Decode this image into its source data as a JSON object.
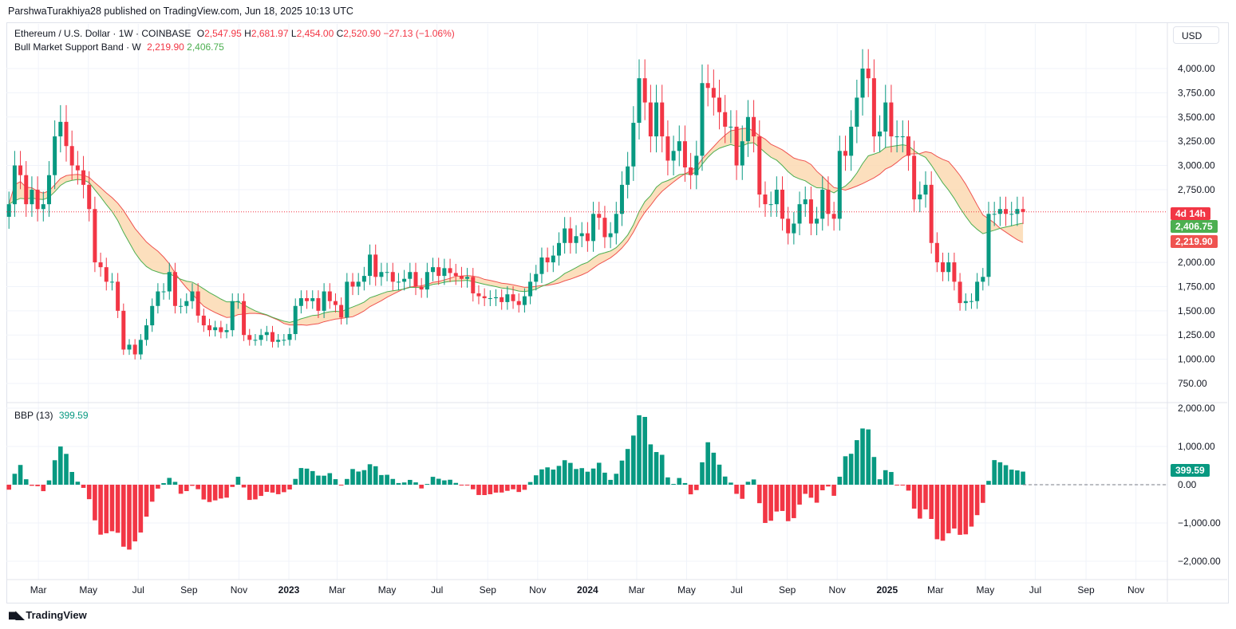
{
  "published": "ParshwaTurakhiya28 published on TradingView.com, Jun 18, 2025 10:13 UTC",
  "symbol": {
    "title": "Ethereum / U.S. Dollar · 1W · COINBASE",
    "o_label": "O",
    "open": "2,547.95",
    "h_label": "H",
    "high": "2,681.97",
    "l_label": "L",
    "low": "2,454.00",
    "c_label": "C",
    "close": "2,520.90",
    "change": "−27.13 (−1.06%)"
  },
  "indicator": {
    "title": "Bull Market Support Band · W",
    "sma": "2,219.90",
    "ema": "2,406.75"
  },
  "bbp": {
    "title": "BBP (13)",
    "value": "399.59"
  },
  "currency": "USD",
  "tags": {
    "countdown": "4d 14h",
    "ema": "2,406.75",
    "sma": "2,219.90",
    "bbp": "399.59"
  },
  "colors": {
    "up": "#089981",
    "down": "#f23645",
    "sma": "#ef5350",
    "ema": "#4caf50",
    "band": "#fbd7ad"
  },
  "brand": "TradingView",
  "chart_data": {
    "type": "candlestick",
    "interval": "1W",
    "x_start": "2022-01-24",
    "closes": [
      2600,
      3000,
      2900,
      2600,
      2750,
      2550,
      2600,
      2900,
      3300,
      3450,
      3200,
      3000,
      2950,
      2800,
      2550,
      2000,
      1950,
      1800,
      1800,
      1500,
      1100,
      1150,
      1050,
      1200,
      1350,
      1550,
      1700,
      1700,
      1900,
      1550,
      1550,
      1600,
      1700,
      1450,
      1350,
      1300,
      1330,
      1280,
      1300,
      1600,
      1600,
      1250,
      1200,
      1200,
      1250,
      1280,
      1180,
      1200,
      1200,
      1260,
      1550,
      1630,
      1600,
      1630,
      1500,
      1700,
      1600,
      1560,
      1430,
      1800,
      1750,
      1800,
      1860,
      2080,
      1850,
      1900,
      1900,
      1800,
      1800,
      1830,
      1900,
      1750,
      1720,
      1900,
      1950,
      1860,
      1940,
      1890,
      1860,
      1830,
      1850,
      1680,
      1650,
      1630,
      1630,
      1640,
      1590,
      1670,
      1600,
      1560,
      1650,
      1800,
      1880,
      2050,
      2000,
      2070,
      2200,
      2350,
      2200,
      2270,
      2300,
      2220,
      2500,
      2460,
      2260,
      2300,
      2500,
      2800,
      2990,
      3440,
      3900,
      3650,
      3300,
      3650,
      3300,
      3050,
      3150,
      3250,
      2980,
      2900,
      3100,
      3850,
      3800,
      3700,
      3550,
      3400,
      3400,
      3000,
      3250,
      3500,
      3300,
      2700,
      2600,
      2600,
      2750,
      2450,
      2300,
      2400,
      2600,
      2650,
      2400,
      2450,
      2750,
      2500,
      2450,
      3150,
      3100,
      3400,
      3700,
      4000,
      3900,
      3300,
      3350,
      3650,
      3300,
      3300,
      3300,
      3100,
      2650,
      2700,
      2800,
      2200,
      2000,
      1900,
      2000,
      1800,
      1580,
      1600,
      1600,
      1800,
      1850,
      2500,
      2500,
      2550,
      2500,
      2500,
      2550,
      2520.9
    ],
    "price_axis": {
      "min": 750,
      "max": 4000,
      "ticks": [
        "750.00",
        "1,000.00",
        "1,250.00",
        "1,500.00",
        "1,750.00",
        "2,000.00",
        "2,750.00",
        "3,000.00",
        "3,250.00",
        "3,500.00",
        "3,750.00",
        "4,000.00"
      ]
    },
    "bbp_axis": {
      "ticks": [
        "2,000.00",
        "1,000.00",
        "0.00",
        "−1,000.00",
        "−2,000.00"
      ]
    },
    "time_axis": [
      {
        "label": "Mar",
        "date": "2022-03-01"
      },
      {
        "label": "May",
        "date": "2022-05-01"
      },
      {
        "label": "Jul",
        "date": "2022-07-01"
      },
      {
        "label": "Sep",
        "date": "2022-09-01"
      },
      {
        "label": "Nov",
        "date": "2022-11-01"
      },
      {
        "label": "2023",
        "date": "2023-01-01",
        "bold": true
      },
      {
        "label": "Mar",
        "date": "2023-03-01"
      },
      {
        "label": "May",
        "date": "2023-05-01"
      },
      {
        "label": "Jul",
        "date": "2023-07-01"
      },
      {
        "label": "Sep",
        "date": "2023-09-01"
      },
      {
        "label": "Nov",
        "date": "2023-11-01"
      },
      {
        "label": "2024",
        "date": "2024-01-01",
        "bold": true
      },
      {
        "label": "Mar",
        "date": "2024-03-01"
      },
      {
        "label": "May",
        "date": "2024-05-01"
      },
      {
        "label": "Jul",
        "date": "2024-07-01"
      },
      {
        "label": "Sep",
        "date": "2024-09-01"
      },
      {
        "label": "Nov",
        "date": "2024-11-01"
      },
      {
        "label": "2025",
        "date": "2025-01-01",
        "bold": true
      },
      {
        "label": "Mar",
        "date": "2025-03-01"
      },
      {
        "label": "May",
        "date": "2025-05-01"
      },
      {
        "label": "Jul",
        "date": "2025-07-01"
      },
      {
        "label": "Sep",
        "date": "2025-09-01"
      },
      {
        "label": "Nov",
        "date": "2025-11-01"
      }
    ]
  }
}
